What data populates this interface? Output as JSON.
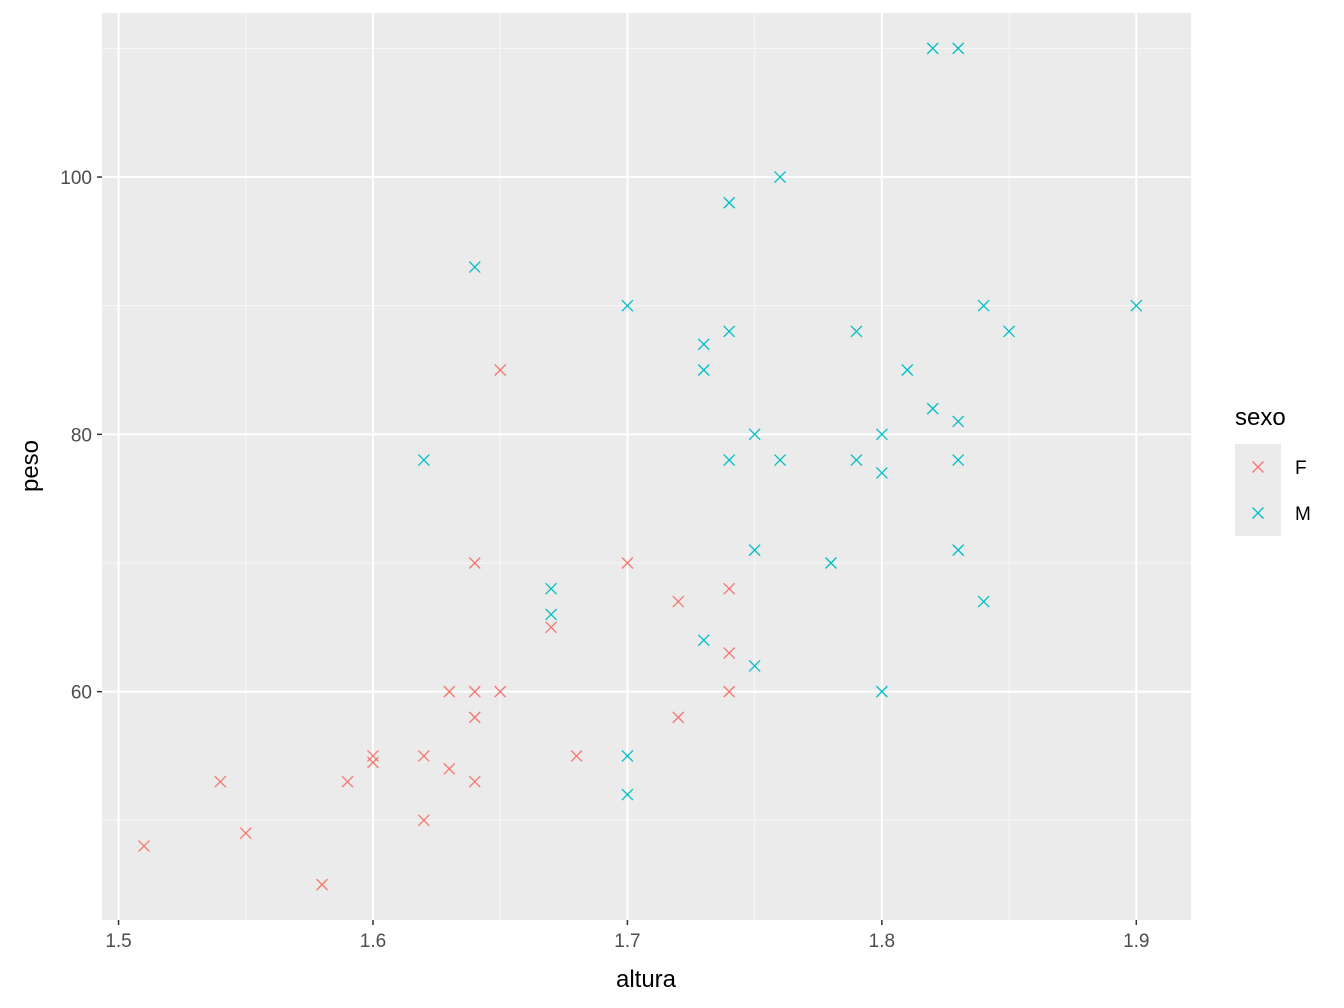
{
  "chart_data": {
    "type": "scatter",
    "xlabel": "altura",
    "ylabel": "peso",
    "xlim": [
      1.4935,
      1.9215
    ],
    "ylim": [
      42.25,
      112.75
    ],
    "x_ticks": [
      1.5,
      1.6,
      1.7,
      1.8,
      1.9
    ],
    "x_tick_labels": [
      "1.5",
      "1.6",
      "1.7",
      "1.8",
      "1.9"
    ],
    "y_ticks": [
      60,
      80,
      100
    ],
    "y_tick_labels": [
      "60",
      "80",
      "100"
    ],
    "grid": true,
    "legend": {
      "title": "sexo",
      "position": "right"
    },
    "marker": "x",
    "series": [
      {
        "name": "F",
        "color": "#F8766D",
        "points": [
          [
            1.51,
            48
          ],
          [
            1.54,
            53
          ],
          [
            1.55,
            49
          ],
          [
            1.58,
            45
          ],
          [
            1.59,
            53
          ],
          [
            1.6,
            55
          ],
          [
            1.6,
            54.5
          ],
          [
            1.62,
            55
          ],
          [
            1.62,
            50
          ],
          [
            1.63,
            60
          ],
          [
            1.63,
            54
          ],
          [
            1.64,
            70
          ],
          [
            1.64,
            60
          ],
          [
            1.64,
            58
          ],
          [
            1.64,
            53
          ],
          [
            1.65,
            85
          ],
          [
            1.65,
            60
          ],
          [
            1.67,
            65
          ],
          [
            1.68,
            55
          ],
          [
            1.7,
            70
          ],
          [
            1.72,
            67
          ],
          [
            1.72,
            58
          ],
          [
            1.74,
            68
          ],
          [
            1.74,
            63
          ],
          [
            1.74,
            60
          ]
        ]
      },
      {
        "name": "M",
        "color": "#00BFC4",
        "points": [
          [
            1.62,
            78
          ],
          [
            1.64,
            93
          ],
          [
            1.67,
            68
          ],
          [
            1.67,
            66
          ],
          [
            1.7,
            90
          ],
          [
            1.7,
            55
          ],
          [
            1.7,
            52
          ],
          [
            1.73,
            87
          ],
          [
            1.73,
            85
          ],
          [
            1.73,
            64
          ],
          [
            1.74,
            98
          ],
          [
            1.74,
            88
          ],
          [
            1.74,
            78
          ],
          [
            1.75,
            80
          ],
          [
            1.75,
            71
          ],
          [
            1.75,
            62
          ],
          [
            1.76,
            100
          ],
          [
            1.76,
            78
          ],
          [
            1.78,
            70
          ],
          [
            1.79,
            88
          ],
          [
            1.79,
            78
          ],
          [
            1.8,
            80
          ],
          [
            1.8,
            77
          ],
          [
            1.8,
            60
          ],
          [
            1.81,
            85
          ],
          [
            1.82,
            110
          ],
          [
            1.82,
            82
          ],
          [
            1.83,
            110
          ],
          [
            1.83,
            81
          ],
          [
            1.83,
            78
          ],
          [
            1.83,
            71
          ],
          [
            1.84,
            90
          ],
          [
            1.84,
            67
          ],
          [
            1.85,
            88
          ],
          [
            1.9,
            90
          ]
        ]
      }
    ]
  }
}
